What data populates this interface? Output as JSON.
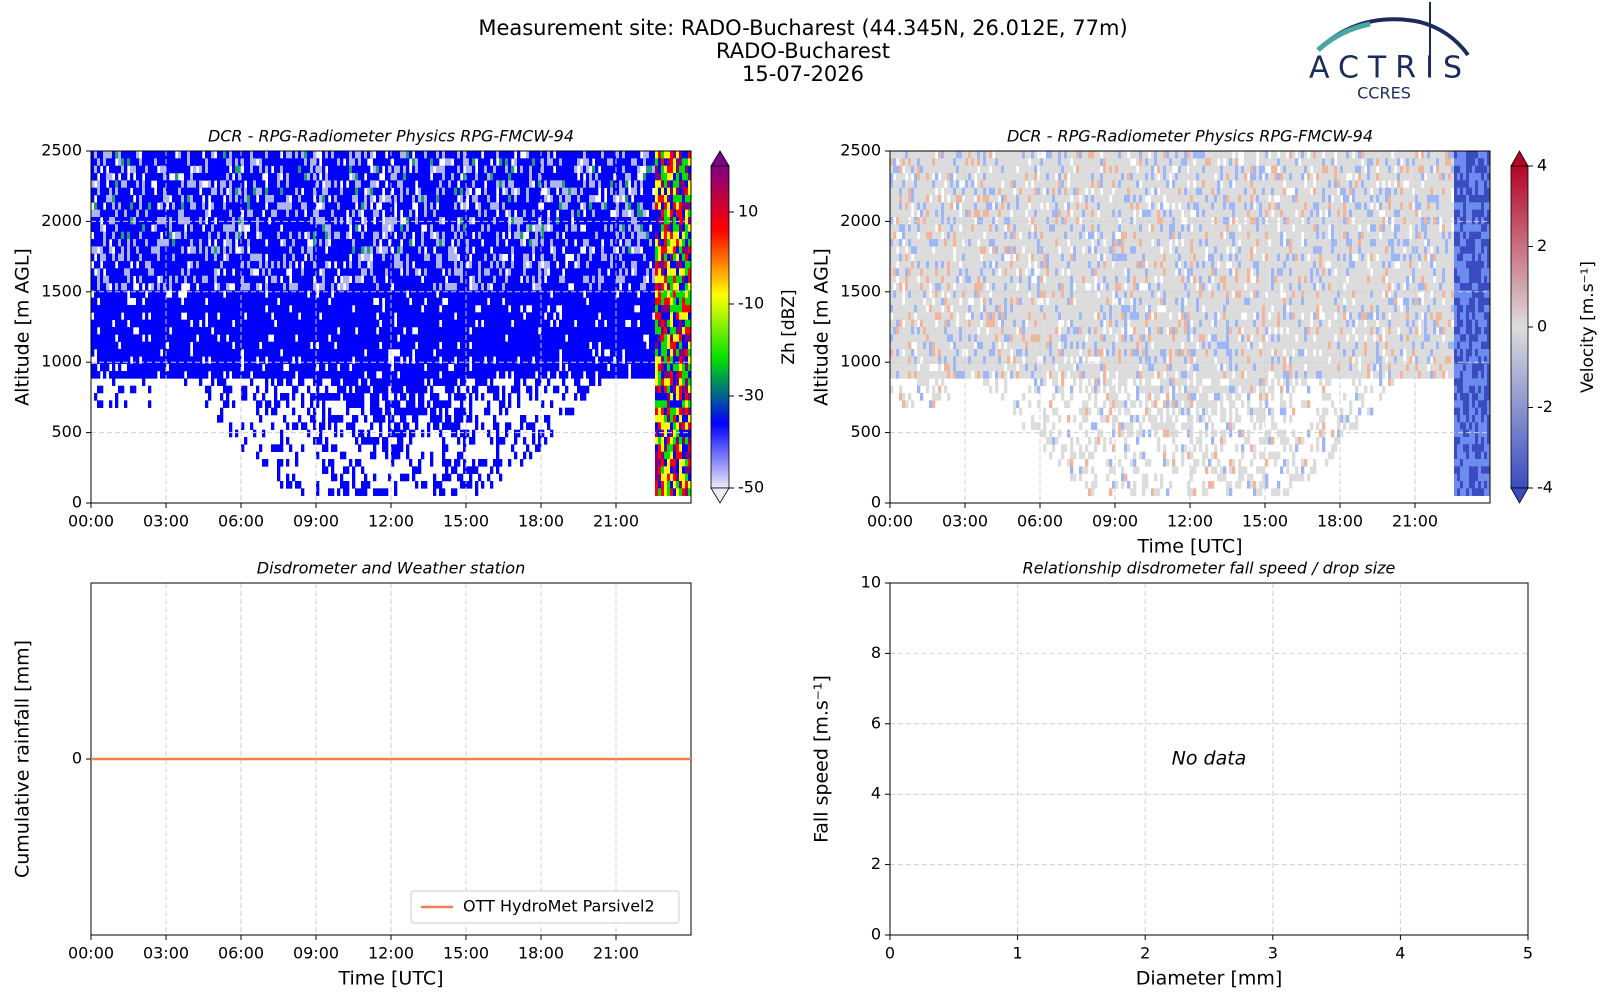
{
  "header": {
    "lines": [
      "Measurement site: RADO-Bucharest (44.345N, 26.012E, 77m)",
      "RADO-Bucharest",
      "15-07-2026"
    ],
    "logo": "ACTRIS",
    "logo_sub": "CCRES"
  },
  "chart_data": [
    {
      "type": "heatmap",
      "title": "DCR - RPG-Radiometer Physics RPG-FMCW-94",
      "y_label": "Altitude [m AGL]",
      "xlim": [
        0,
        24
      ],
      "xticks": [
        {
          "value": 0,
          "label": "00:00"
        },
        {
          "value": 3,
          "label": "03:00"
        },
        {
          "value": 6,
          "label": "06:00"
        },
        {
          "value": 9,
          "label": "09:00"
        },
        {
          "value": 12,
          "label": "12:00"
        },
        {
          "value": 15,
          "label": "15:00"
        },
        {
          "value": 18,
          "label": "18:00"
        },
        {
          "value": 21,
          "label": "21:00"
        }
      ],
      "ylim": [
        0,
        2500
      ],
      "yticks": [
        0,
        500,
        1000,
        1500,
        2000,
        2500
      ],
      "grid": true,
      "colorbar_label": "Zh [dBZ]",
      "clim": [
        -50,
        20
      ],
      "cticks": [
        -50,
        -30,
        -10,
        10
      ],
      "colormap": [
        "#ececf4",
        "#0000ff",
        "#00e000",
        "#ffff00",
        "#ff0000",
        "#800080"
      ]
    },
    {
      "type": "heatmap",
      "title": "DCR - RPG-Radiometer Physics RPG-FMCW-94",
      "y_label": "Altitude [m AGL]",
      "x_label": "Time [UTC]",
      "xlim": [
        0,
        24
      ],
      "xticks": [
        {
          "value": 0,
          "label": "00:00"
        },
        {
          "value": 3,
          "label": "03:00"
        },
        {
          "value": 6,
          "label": "06:00"
        },
        {
          "value": 9,
          "label": "09:00"
        },
        {
          "value": 12,
          "label": "12:00"
        },
        {
          "value": 15,
          "label": "15:00"
        },
        {
          "value": 18,
          "label": "18:00"
        },
        {
          "value": 21,
          "label": "21:00"
        }
      ],
      "ylim": [
        0,
        2500
      ],
      "yticks": [
        0,
        500,
        1000,
        1500,
        2000,
        2500
      ],
      "grid": true,
      "colorbar_label": "Velocity [m.s⁻¹]",
      "clim": [
        -4,
        4
      ],
      "cticks": [
        -4,
        -2,
        0,
        2,
        4
      ],
      "colormap": [
        "#3b4cc0",
        "#dcdcdc",
        "#b40426"
      ]
    },
    {
      "type": "line",
      "title": "Disdrometer and Weather station",
      "y_label": "Cumulative rainfall [mm]",
      "x_label": "Time [UTC]",
      "xlim": [
        0,
        24
      ],
      "xticks": [
        {
          "value": 0,
          "label": "00:00"
        },
        {
          "value": 3,
          "label": "03:00"
        },
        {
          "value": 6,
          "label": "06:00"
        },
        {
          "value": 9,
          "label": "09:00"
        },
        {
          "value": 12,
          "label": "12:00"
        },
        {
          "value": 15,
          "label": "15:00"
        },
        {
          "value": 18,
          "label": "18:00"
        },
        {
          "value": 21,
          "label": "21:00"
        }
      ],
      "ylim": [
        -1,
        1
      ],
      "yticks": [
        0
      ],
      "grid": true,
      "legend": "lower-right",
      "series": [
        {
          "name": "OTT HydroMet Parsivel2",
          "color": "#f08050",
          "x": [
            0,
            24
          ],
          "values": [
            0,
            0
          ]
        }
      ]
    },
    {
      "type": "scatter",
      "title": "Relationship disdrometer fall speed / drop size",
      "y_label": "Fall speed [m.s⁻¹]",
      "x_label": "Diameter [mm]",
      "xlim": [
        0,
        5
      ],
      "xticks": [
        0,
        1,
        2,
        3,
        4,
        5
      ],
      "ylim": [
        0,
        10
      ],
      "yticks": [
        0,
        2,
        4,
        6,
        8,
        10
      ],
      "grid": true,
      "annotation": "No data"
    }
  ]
}
